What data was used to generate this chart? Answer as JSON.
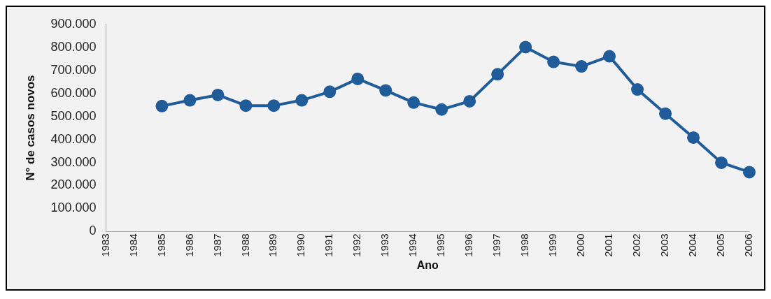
{
  "chart_data": {
    "type": "line",
    "xlabel": "Ano",
    "ylabel": "N° de casos novos",
    "categories": [
      "1983",
      "1984",
      "1985",
      "1986",
      "1987",
      "1988",
      "1989",
      "1990",
      "1991",
      "1992",
      "1993",
      "1994",
      "1995",
      "1996",
      "1997",
      "1998",
      "1999",
      "2000",
      "2001",
      "2002",
      "2003",
      "2004",
      "2005",
      "2006"
    ],
    "series": [
      {
        "color": "#1f5c99",
        "values": [
          null,
          null,
          545000,
          570000,
          593000,
          547000,
          547000,
          570000,
          607000,
          663000,
          613000,
          560000,
          530000,
          566000,
          683000,
          801000,
          737000,
          717000,
          761000,
          617000,
          512000,
          408000,
          299000,
          258000
        ]
      }
    ],
    "ylim": [
      0,
      900000
    ],
    "yticks": [
      {
        "value": 0,
        "label": "0"
      },
      {
        "value": 100000,
        "label": "100.000"
      },
      {
        "value": 200000,
        "label": "200.000"
      },
      {
        "value": 300000,
        "label": "300.000"
      },
      {
        "value": 400000,
        "label": "400.000"
      },
      {
        "value": 500000,
        "label": "500.000"
      },
      {
        "value": 600000,
        "label": "600.000"
      },
      {
        "value": 700000,
        "label": "700.000"
      },
      {
        "value": 800000,
        "label": "800.000"
      },
      {
        "value": 900000,
        "label": "900.000"
      }
    ],
    "grid": false,
    "legend": false,
    "marker": "circle",
    "line_style": "solid"
  }
}
